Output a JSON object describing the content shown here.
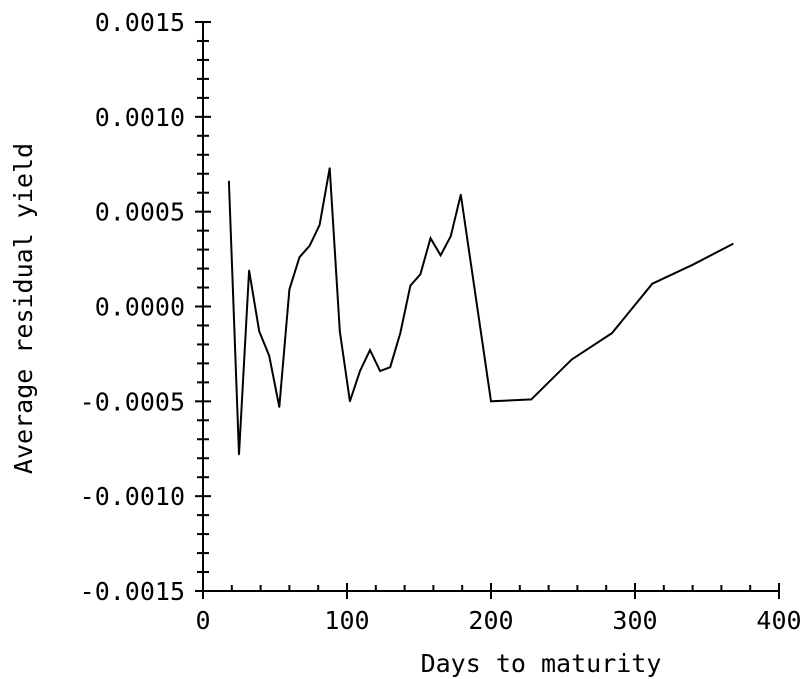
{
  "chart_data": {
    "type": "line",
    "title": "",
    "xlabel": "Days to maturity",
    "ylabel": "Average residual yield",
    "xlim": [
      0,
      400
    ],
    "ylim": [
      -0.0015,
      0.0015
    ],
    "grid": false,
    "legend": "none",
    "x_ticks": [
      {
        "value": 0,
        "label": "0"
      },
      {
        "value": 100,
        "label": "100"
      },
      {
        "value": 200,
        "label": "200"
      },
      {
        "value": 300,
        "label": "300"
      },
      {
        "value": 400,
        "label": "400"
      }
    ],
    "y_ticks": [
      {
        "value": 0.0015,
        "label": "0.0015"
      },
      {
        "value": 0.001,
        "label": "0.0010"
      },
      {
        "value": 0.0005,
        "label": "0.0005"
      },
      {
        "value": 0.0,
        "label": "0.0000"
      },
      {
        "value": -0.0005,
        "label": "-0.0005"
      },
      {
        "value": -0.001,
        "label": "-0.0010"
      },
      {
        "value": -0.0015,
        "label": "-0.0015"
      }
    ],
    "x_minor_step": 20,
    "y_minor_step": 0.0001,
    "series": [
      {
        "color": "#000000",
        "x": [
          18,
          25,
          32,
          39,
          46,
          53,
          60,
          67,
          74,
          81,
          88,
          95,
          102,
          109,
          116,
          123,
          130,
          137,
          144,
          151,
          158,
          165,
          172,
          179,
          200,
          228,
          256,
          284,
          312,
          340,
          368
        ],
        "y": [
          0.00066,
          -0.00078,
          0.00019,
          -0.00013,
          -0.00026,
          -0.00053,
          9e-05,
          0.00026,
          0.00032,
          0.00043,
          0.00073,
          -0.00013,
          -0.0005,
          -0.00034,
          -0.00023,
          -0.00034,
          -0.00032,
          -0.00014,
          0.00011,
          0.00017,
          0.00036,
          0.00027,
          0.00037,
          0.00059,
          -0.0005,
          -0.00049,
          -0.00028,
          -0.00014,
          0.00012,
          0.00022,
          0.00033
        ]
      }
    ]
  }
}
